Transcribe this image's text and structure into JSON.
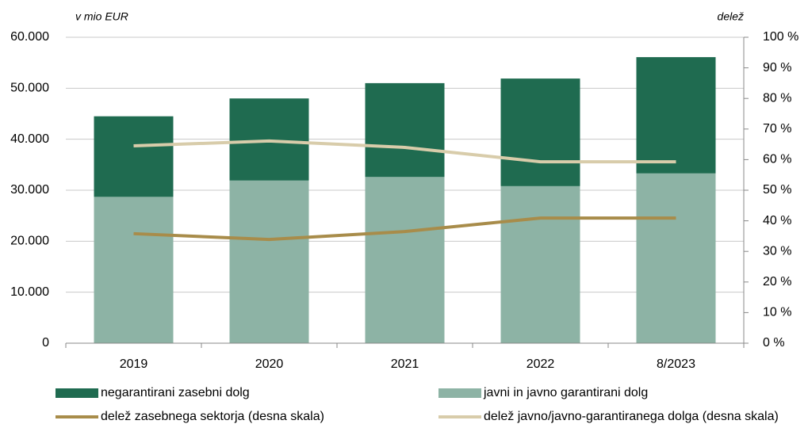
{
  "chart_data": {
    "type": "bar",
    "y_label": "v mio EUR",
    "y2_label": "delež",
    "categories": [
      "2019",
      "2020",
      "2021",
      "2022",
      "8/2023"
    ],
    "series": [
      {
        "name": "javni in javno garantirani dolg",
        "color": "#8db3a5",
        "values": [
          28700,
          31900,
          32600,
          30800,
          33300
        ]
      },
      {
        "name": "negarantirani zasebni dolg",
        "color": "#1f6b50",
        "values": [
          15800,
          16100,
          18400,
          21100,
          22800
        ]
      },
      {
        "name": "delež zasebnega sektorja (desna skala)",
        "type": "line",
        "axis": "y2",
        "color": "#a88c4a",
        "values": [
          35.8,
          33.9,
          36.5,
          40.9,
          40.9
        ]
      },
      {
        "name": "delež javno/javno-garantiranega dolga (desna skala)",
        "type": "line",
        "axis": "y2",
        "color": "#d8ccaa",
        "values": [
          64.5,
          66.1,
          64.0,
          59.3,
          59.3
        ]
      }
    ],
    "stacked": true,
    "ylim": [
      0,
      60000
    ],
    "yticks": [
      0,
      {
        "value": 10000,
        "label": "10.000"
      },
      {
        "value": 20000,
        "label": "20.000"
      },
      {
        "value": 30000,
        "label": "30.000"
      },
      {
        "value": 40000,
        "label": "40.000"
      },
      {
        "value": 50000,
        "label": "50.000"
      },
      {
        "value": 60000,
        "label": "60.000"
      }
    ],
    "y2lim": [
      0,
      100
    ],
    "y2ticks": [
      {
        "value": 0,
        "label": "0 %"
      },
      {
        "value": 10,
        "label": "10 %"
      },
      {
        "value": 20,
        "label": "20 %"
      },
      {
        "value": 30,
        "label": "30 %"
      },
      {
        "value": 40,
        "label": "40 %"
      },
      {
        "value": 50,
        "label": "50 %"
      },
      {
        "value": 60,
        "label": "60 %"
      },
      {
        "value": 70,
        "label": "70 %"
      },
      {
        "value": 80,
        "label": "80 %"
      },
      {
        "value": 90,
        "label": "90 %"
      },
      {
        "value": 100,
        "label": "100 %"
      }
    ],
    "grid": true
  }
}
